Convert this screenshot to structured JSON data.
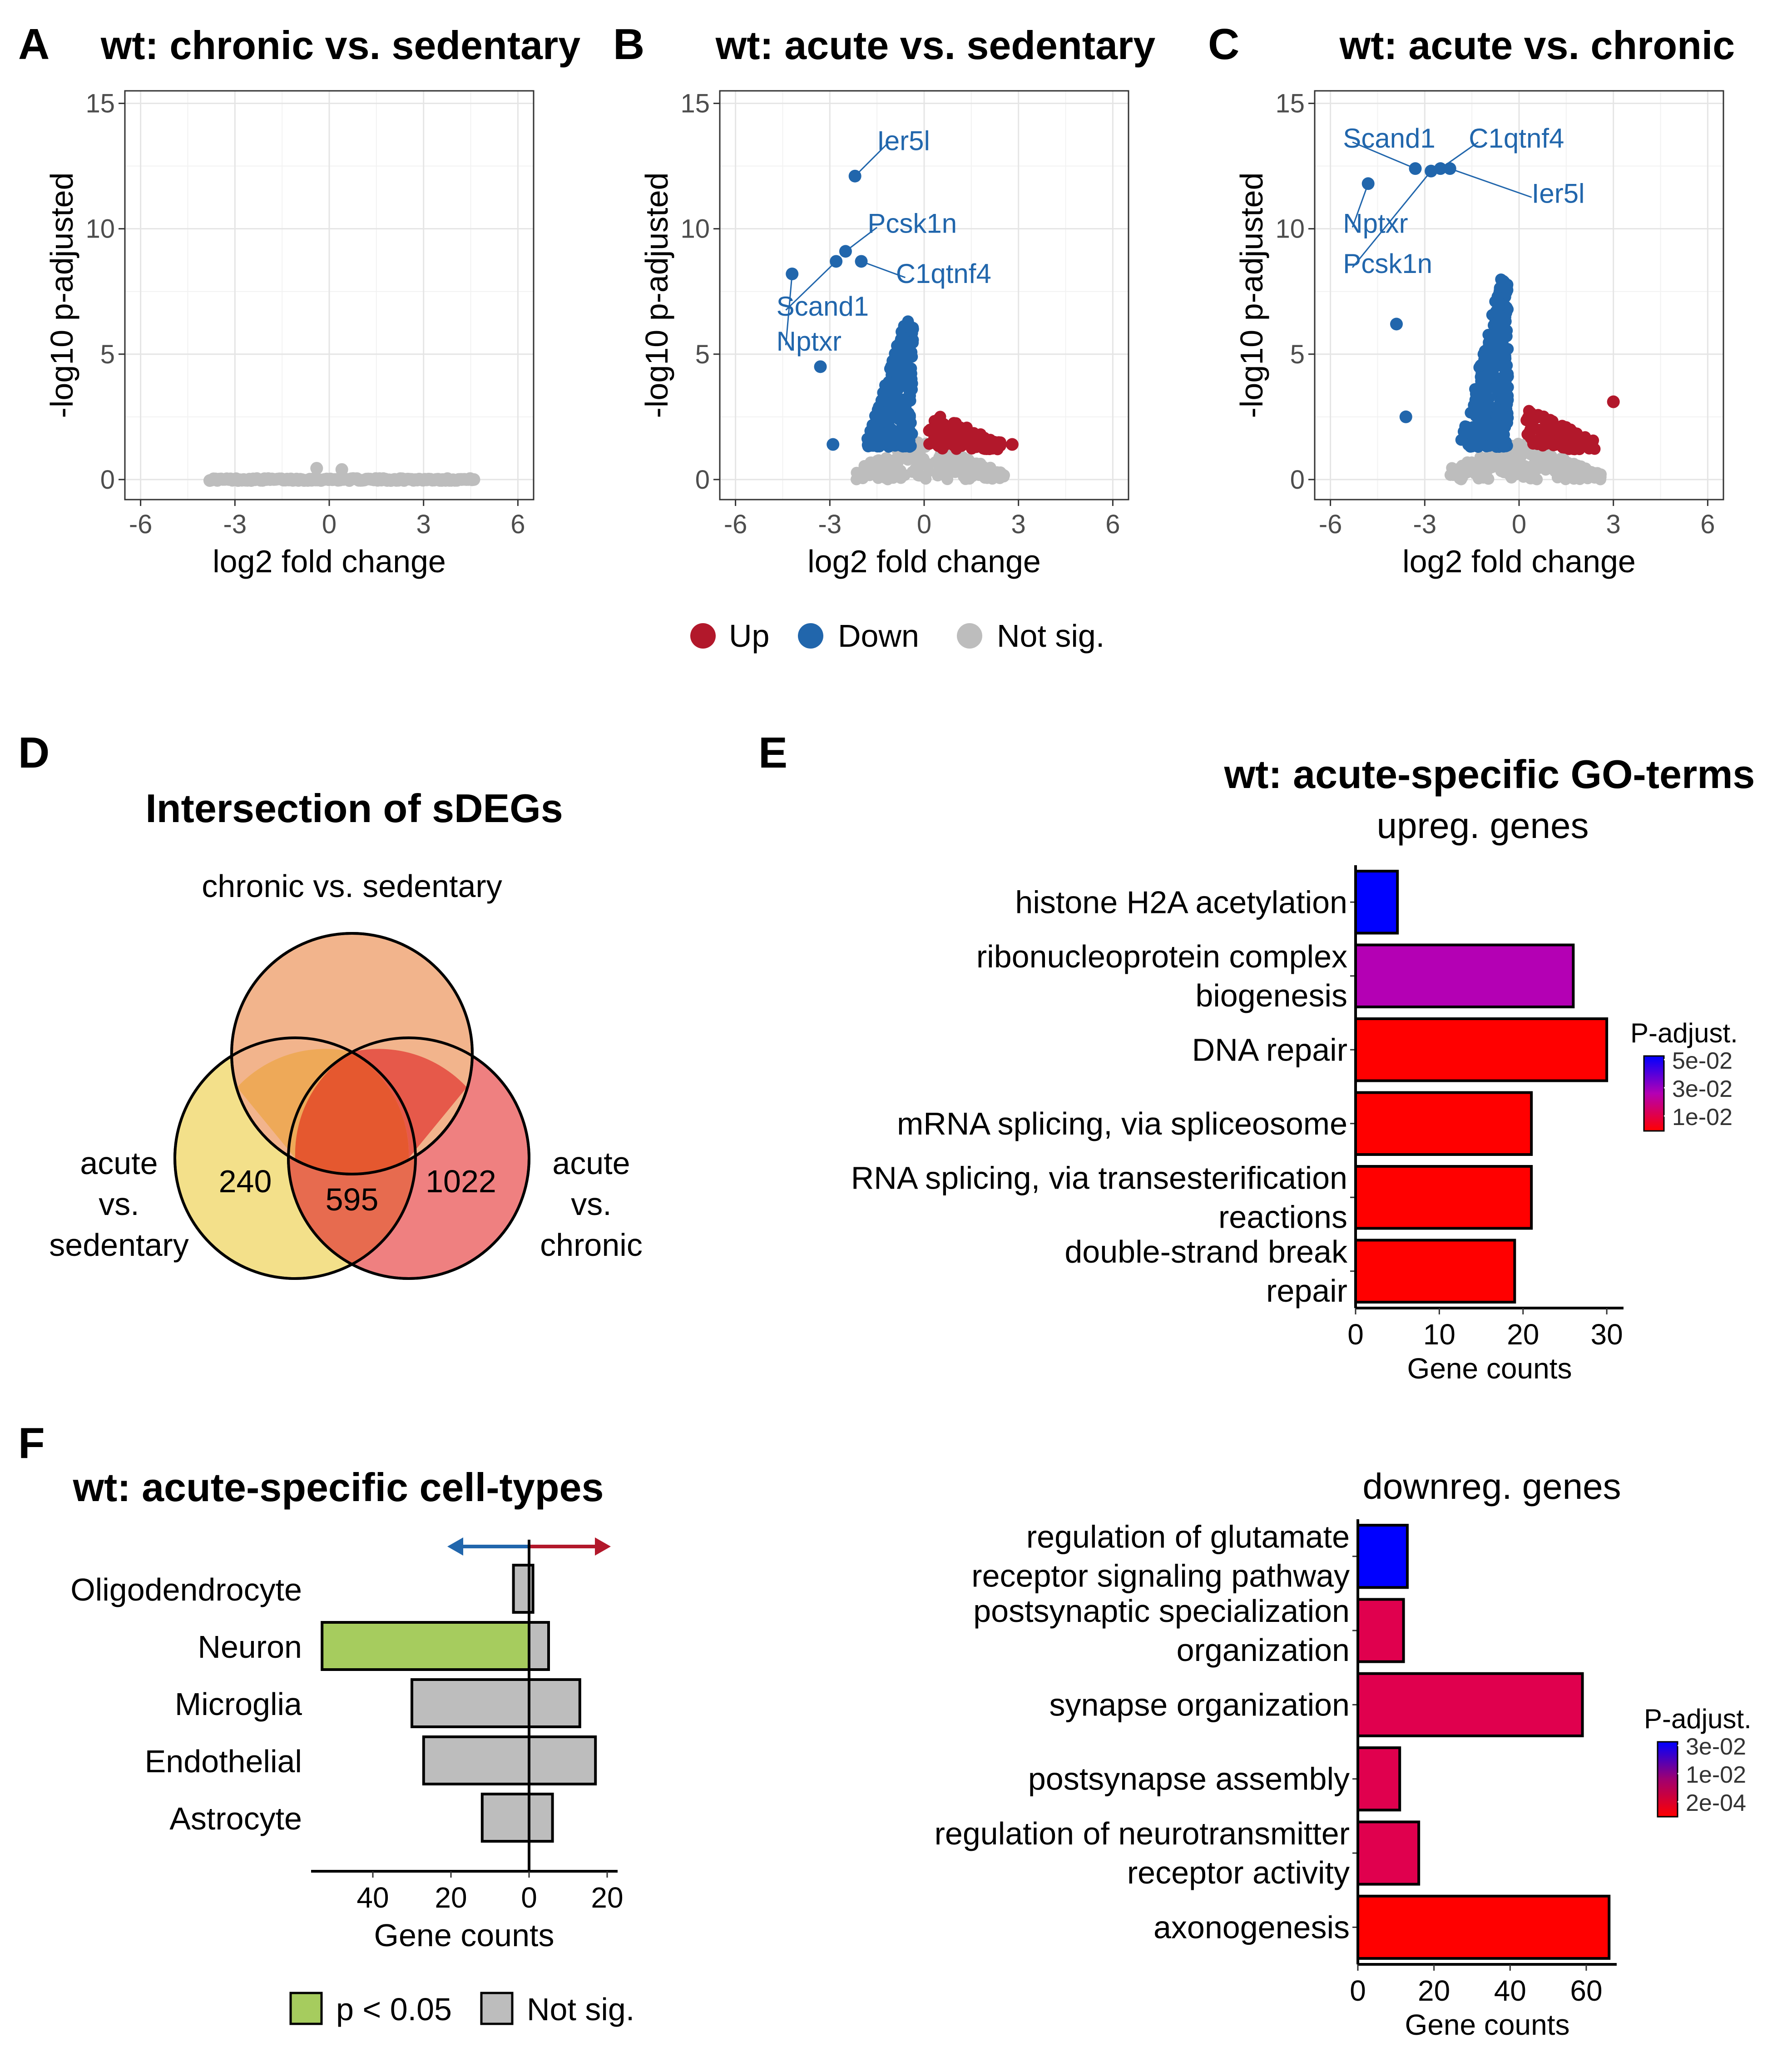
{
  "colors": {
    "up": "#b2182b",
    "down": "#2166ac",
    "notsig": "#bdbdbd",
    "sig": "#a6cc5e"
  },
  "panel_letters": [
    "A",
    "B",
    "C",
    "D",
    "E",
    "F"
  ],
  "legend_volcano": {
    "up": "Up",
    "down": "Down",
    "notsig": "Not sig."
  },
  "venn": {
    "title": "Intersection of sDEGs",
    "sets": {
      "chronic": "chronic vs. sedentary",
      "acute_sed": [
        "acute",
        "vs.",
        "sedentary"
      ],
      "acute_chr": [
        "acute",
        "vs.",
        "chronic"
      ]
    },
    "counts": {
      "only_sed": "240",
      "shared": "595",
      "only_chr": "1022"
    }
  },
  "chart_data": [
    {
      "panel": "A",
      "type": "scatter",
      "title": "wt: chronic vs. sedentary",
      "xlabel": "log2 fold change",
      "ylabel": "-log10 p-adjusted",
      "xlim": [
        -6.5,
        6.5
      ],
      "ylim": [
        -0.8,
        15.5
      ],
      "xticks": [
        -6,
        -3,
        0,
        3,
        6
      ],
      "yticks": [
        0,
        5,
        10,
        15
      ],
      "points": [
        [
          -0.4,
          0.45
        ],
        [
          0.4,
          0.4
        ],
        [
          4.2,
          0.0
        ],
        [
          4.6,
          0.0
        ],
        [
          -3.6,
          0.0
        ],
        [
          3.6,
          0.0
        ]
      ],
      "labels": []
    },
    {
      "panel": "B",
      "type": "scatter",
      "title": "wt: acute vs. sedentary",
      "xlabel": "log2 fold change",
      "ylabel": "-log10 p-adjusted",
      "xlim": [
        -6.5,
        6.5
      ],
      "ylim": [
        -0.8,
        15.5
      ],
      "xticks": [
        -6,
        -3,
        0,
        3,
        6
      ],
      "yticks": [
        0,
        5,
        10,
        15
      ],
      "points": [
        [
          -2.2,
          12.1
        ],
        [
          -2.5,
          9.1
        ],
        [
          -2.8,
          8.7
        ],
        [
          -2.0,
          8.7
        ],
        [
          -4.2,
          8.2
        ],
        [
          -3.3,
          4.5
        ],
        [
          -2.9,
          1.4
        ],
        [
          2.8,
          1.4
        ]
      ],
      "labels": [
        {
          "gene": "Ier5l",
          "x": -2.2,
          "y": 12.1
        },
        {
          "gene": "Pcsk1n",
          "x": -2.5,
          "y": 9.1
        },
        {
          "gene": "C1qtnf4",
          "x": -2.0,
          "y": 8.7
        },
        {
          "gene": "Scand1",
          "x": -2.8,
          "y": 8.7
        },
        {
          "gene": "Nptxr",
          "x": -4.2,
          "y": 8.2
        }
      ]
    },
    {
      "panel": "C",
      "type": "scatter",
      "title": "wt: acute vs. chronic",
      "xlabel": "log2 fold change",
      "ylabel": "-log10 p-adjusted",
      "xlim": [
        -6.5,
        6.5
      ],
      "ylim": [
        -0.8,
        15.5
      ],
      "xticks": [
        -6,
        -3,
        0,
        3,
        6
      ],
      "yticks": [
        0,
        5,
        10,
        15
      ],
      "points": [
        [
          -3.3,
          12.4
        ],
        [
          -2.8,
          12.3
        ],
        [
          -2.5,
          12.4
        ],
        [
          -2.2,
          12.4
        ],
        [
          -4.8,
          11.8
        ],
        [
          -3.9,
          6.2
        ],
        [
          -3.6,
          2.5
        ],
        [
          3.0,
          3.1
        ]
      ],
      "labels": [
        {
          "gene": "Scand1",
          "x": -3.3,
          "y": 12.4
        },
        {
          "gene": "C1qtnf4",
          "x": -2.5,
          "y": 12.4
        },
        {
          "gene": "Ier5l",
          "x": -2.2,
          "y": 12.4
        },
        {
          "gene": "Nptxr",
          "x": -4.8,
          "y": 11.8
        },
        {
          "gene": "Pcsk1n",
          "x": -2.8,
          "y": 12.3
        }
      ]
    },
    {
      "panel": "E-up",
      "type": "bar",
      "title": "wt: acute-specific GO-terms",
      "subtitle": "upreg. genes",
      "xlabel": "Gene counts",
      "xlim": [
        0,
        32
      ],
      "xticks": [
        0,
        10,
        20,
        30
      ],
      "categories": [
        [
          "histone H2A acetylation"
        ],
        [
          "ribonucleoprotein complex",
          "biogenesis"
        ],
        [
          "DNA repair"
        ],
        [
          "mRNA splicing, via spliceosome"
        ],
        [
          "RNA splicing, via transesterification",
          "reactions"
        ],
        [
          "double-strand break",
          "repair"
        ]
      ],
      "values": [
        5,
        26,
        30,
        21,
        21,
        19
      ],
      "p_adjust": [
        0.05,
        0.03,
        0.01,
        0.01,
        0.01,
        0.01
      ],
      "legend": {
        "title": "P-adjust.",
        "labels": [
          "5e-02",
          "3e-02",
          "1e-02"
        ]
      }
    },
    {
      "panel": "E-down",
      "type": "bar",
      "subtitle": "downreg. genes",
      "xlabel": "Gene counts",
      "xlim": [
        0,
        68
      ],
      "xticks": [
        0,
        20,
        40,
        60
      ],
      "categories": [
        [
          "regulation of glutamate",
          "receptor signaling pathway"
        ],
        [
          "postsynaptic specialization",
          "organization"
        ],
        [
          "synapse organization"
        ],
        [
          "postsynapse assembly"
        ],
        [
          "regulation of neurotransmitter",
          "receptor activity"
        ],
        [
          "axonogenesis"
        ]
      ],
      "values": [
        13,
        12,
        59,
        11,
        16,
        66
      ],
      "p_adjust": [
        0.03,
        0.012,
        0.012,
        0.012,
        0.012,
        0.0002
      ],
      "legend": {
        "title": "P-adjust.",
        "labels": [
          "3e-02",
          "1e-02",
          "2e-04"
        ]
      }
    },
    {
      "panel": "F",
      "type": "bar",
      "title": "wt: acute-specific cell-types",
      "xlabel": "Gene counts",
      "xticks": [
        "40",
        "20",
        "0",
        "20"
      ],
      "categories": [
        "Oligodendrocyte",
        "Neuron",
        "Microglia",
        "Endothelial",
        "Astrocyte"
      ],
      "down": [
        4,
        53,
        30,
        27,
        12
      ],
      "up": [
        1,
        5,
        13,
        17,
        6
      ],
      "down_significant": [
        false,
        true,
        false,
        false,
        false
      ],
      "legend": {
        "sig": "p < 0.05",
        "notsig": "Not sig."
      }
    }
  ]
}
